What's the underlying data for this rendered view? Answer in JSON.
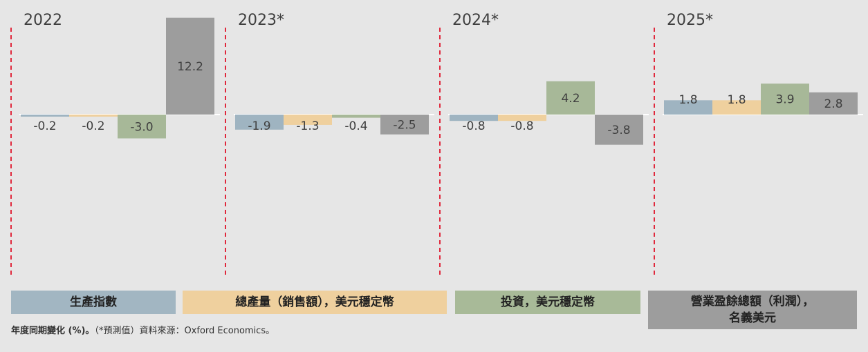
{
  "chart_data": {
    "type": "bar",
    "groups": [
      "2022",
      "2023*",
      "2024*",
      "2025*"
    ],
    "series": [
      {
        "name": "生產指數",
        "color": "#9fb4c1",
        "values": [
          -0.2,
          -1.9,
          -0.8,
          1.8
        ]
      },
      {
        "name": "總產量（銷售額），美元穩定幣",
        "color": "#efd09e",
        "values": [
          -0.2,
          -1.3,
          -0.8,
          1.8
        ]
      },
      {
        "name": "投資，美元穩定幣",
        "color": "#a7b898",
        "values": [
          -3.0,
          -0.4,
          4.2,
          3.9
        ]
      },
      {
        "name": "營業盈餘總額（利潤），名義美元",
        "color": "#9d9d9d",
        "values": [
          12.2,
          -2.5,
          -3.8,
          2.8
        ]
      }
    ],
    "labels": [
      [
        "-0.2",
        "-1.9",
        "-0.8",
        "1.8"
      ],
      [
        "-0.2",
        "-1.3",
        "-0.8",
        "1.8"
      ],
      [
        "-3.0",
        "-0.4",
        "4.2",
        "3.9"
      ],
      [
        "12.2",
        "-2.5",
        "-3.8",
        "2.8"
      ]
    ],
    "separator_color": "#e0283c"
  },
  "legend": {
    "items": [
      {
        "label": "生產指數",
        "color": "#a2b6c2"
      },
      {
        "label": "總產量（銷售額），美元穩定幣",
        "color": "#efd09e"
      },
      {
        "label": "投資，美元穩定幣",
        "color": "#a8ba98"
      },
      {
        "label_line1": "營業盈餘總額（利潤），",
        "label_line2": "名義美元",
        "color": "#9d9d9d"
      }
    ]
  },
  "footnote": {
    "bold": "年度同期變化 (%)。",
    "rest": "（*預測值）資料來源：Oxford Economics。"
  }
}
